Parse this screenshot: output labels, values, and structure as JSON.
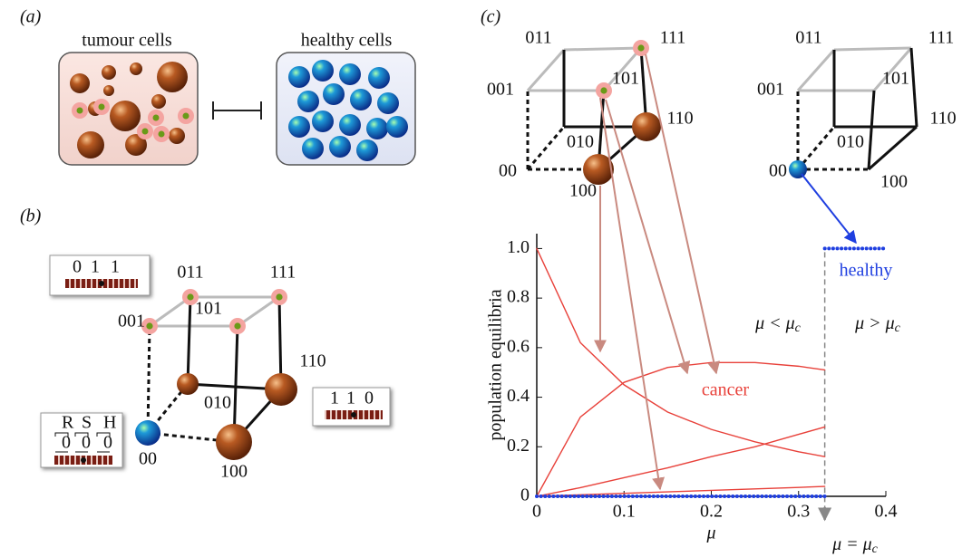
{
  "panels": {
    "a": {
      "label": "(a)",
      "tumour": "tumour cells",
      "healthy": "healthy cells"
    },
    "b": {
      "label": "(b)",
      "nodes": [
        "00",
        "100",
        "010",
        "001",
        "110",
        "101",
        "011",
        "111"
      ],
      "box_top": [
        "0",
        "1",
        "1"
      ],
      "box_right": [
        "1",
        "1",
        "0"
      ],
      "box_left_head": [
        "R",
        "S",
        "H"
      ],
      "box_left_bits": [
        "0",
        "0",
        "0"
      ]
    },
    "c": {
      "label": "(c)",
      "nodes_left": [
        "00",
        "100",
        "010",
        "001",
        "110",
        "101",
        "011",
        "111"
      ],
      "nodes_right": [
        "00",
        "100",
        "010",
        "001",
        "110",
        "101",
        "011",
        "111"
      ]
    }
  },
  "chart_data": {
    "type": "line",
    "x_label": "μ",
    "y_label": "population equilibria",
    "x": [
      0,
      0.05,
      0.1,
      0.15,
      0.2,
      0.25,
      0.3,
      0.33,
      0.4
    ],
    "series": [
      {
        "color": "#e8413a",
        "values": [
          1.0,
          0.62,
          0.45,
          0.34,
          0.27,
          0.22,
          0.18,
          0.16,
          null
        ]
      },
      {
        "color": "#e8413a",
        "values": [
          0,
          0.32,
          0.46,
          0.52,
          0.54,
          0.54,
          0.525,
          0.51,
          null
        ]
      },
      {
        "color": "#e8413a",
        "values": [
          0,
          0.035,
          0.075,
          0.115,
          0.16,
          0.2,
          0.25,
          0.28,
          null
        ]
      },
      {
        "color": "#e8413a",
        "values": [
          0,
          0.006,
          0.012,
          0.018,
          0.024,
          0.03,
          0.036,
          0.04,
          null
        ]
      },
      {
        "color": "#1f3fe0",
        "values": [
          0,
          0,
          0,
          0,
          0,
          0,
          0,
          0,
          null
        ]
      },
      {
        "color": "#1f3fe0",
        "values": [
          null,
          null,
          null,
          null,
          null,
          null,
          null,
          1.0,
          1.0
        ]
      }
    ],
    "critical_x": 0.33,
    "xlim": [
      0,
      0.4
    ],
    "xticks": [
      0,
      0.1,
      0.2,
      0.3,
      0.4
    ],
    "ylim": [
      0,
      1.06
    ],
    "yticks": [
      0,
      0.2,
      0.4,
      0.6,
      0.8,
      {
        "value": 1.0,
        "label": "1.0"
      }
    ],
    "annotations": {
      "cancer": "cancer",
      "healthy": "healthy",
      "below": {
        "text": "μ < μ",
        "sub": "c"
      },
      "above": {
        "text": "μ > μ",
        "sub": "c"
      },
      "critical": {
        "text": "μ = μ",
        "sub": "c"
      }
    }
  }
}
